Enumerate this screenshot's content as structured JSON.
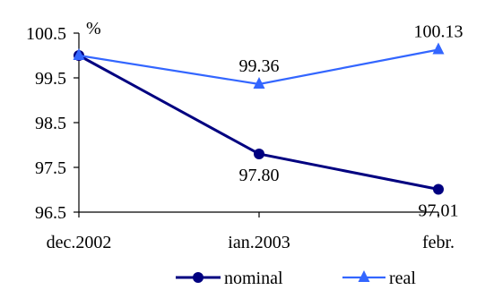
{
  "chart_data": {
    "type": "line",
    "categories": [
      "dec.2002",
      "ian.2003",
      "febr."
    ],
    "ylim": [
      96.5,
      100.5
    ],
    "yticks": [
      "96.5",
      "97.5",
      "98.5",
      "99.5",
      "100.5"
    ],
    "unit_label": "%",
    "grid": false,
    "legend_position": "bottom-center",
    "series": [
      {
        "name": "nominal",
        "values": [
          100.0,
          97.8,
          97.01
        ],
        "data_labels": [
          null,
          "97.80",
          "97.01"
        ],
        "color": "#000080",
        "marker": "circle"
      },
      {
        "name": "real",
        "values": [
          100.0,
          99.36,
          100.13
        ],
        "data_labels": [
          null,
          "99.36",
          "100.13"
        ],
        "color": "#3366ff",
        "marker": "triangle"
      }
    ]
  }
}
